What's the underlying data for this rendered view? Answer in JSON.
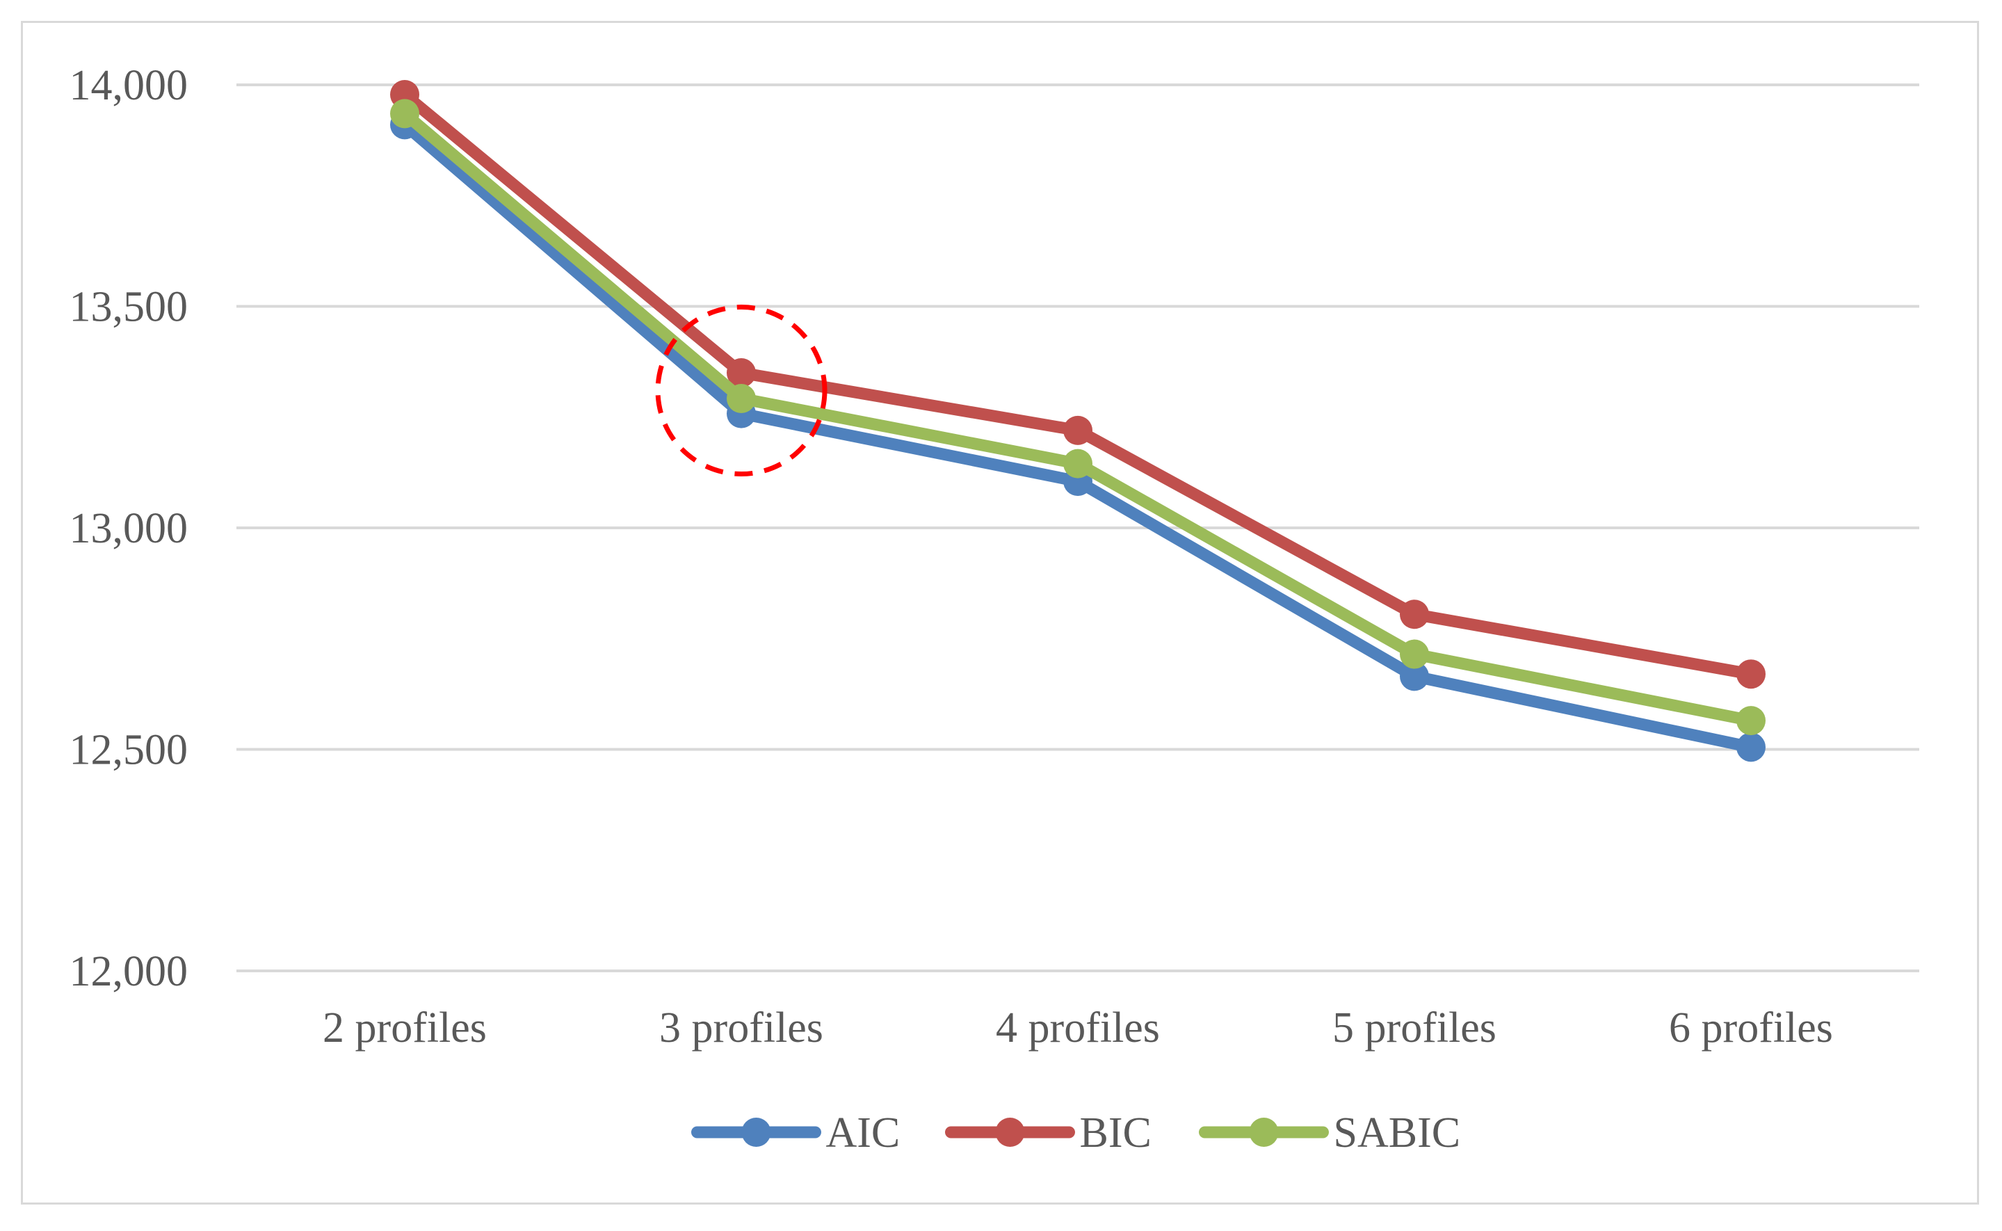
{
  "chart_data": {
    "type": "line",
    "title": "",
    "xlabel": "",
    "ylabel": "",
    "categories": [
      "2 profiles",
      "3 profiles",
      "4 profiles",
      "5 profiles",
      "6 profiles"
    ],
    "ylim": [
      12000,
      14000
    ],
    "yticks": [
      12000,
      12500,
      13000,
      13500,
      14000
    ],
    "ytick_labels": [
      "12,000",
      "12,500",
      "13,000",
      "13,500",
      "14,000"
    ],
    "grid": "horizontal",
    "legend_position": "bottom",
    "series": [
      {
        "name": "AIC",
        "color": "#4f81bd",
        "values": [
          13910,
          13258,
          13105,
          12665,
          12505
        ]
      },
      {
        "name": "BIC",
        "color": "#c0504d",
        "values": [
          13978,
          13350,
          13220,
          12805,
          12670
        ]
      },
      {
        "name": "SABIC",
        "color": "#9bbb59",
        "values": [
          13935,
          13292,
          13145,
          12715,
          12565
        ]
      }
    ],
    "annotation": {
      "type": "dashed-circle",
      "category": "3 profiles",
      "value": 13310,
      "color": "#ff0000"
    }
  }
}
